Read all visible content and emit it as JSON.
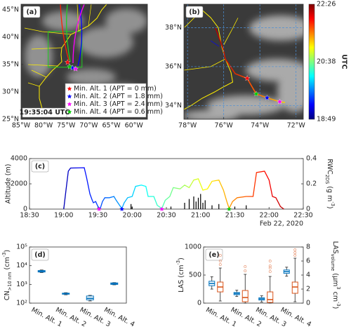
{
  "chart_data": [
    {
      "type": "map",
      "label": "(a)",
      "xlim": [
        -85,
        -57
      ],
      "ylim": [
        25,
        46
      ],
      "xticks": [
        {
          "value": -85,
          "label": "85°W"
        },
        {
          "value": -80,
          "label": "80°W"
        },
        {
          "value": -75,
          "label": "75°W"
        },
        {
          "value": -70,
          "label": "70°W"
        },
        {
          "value": -65,
          "label": "65°W"
        },
        {
          "value": -60,
          "label": "60°W"
        }
      ],
      "yticks": [
        {
          "value": 25,
          "label": "25°N"
        },
        {
          "value": 30,
          "label": "30°N"
        },
        {
          "value": 35,
          "label": "35°N"
        },
        {
          "value": 40,
          "label": "40°N"
        },
        {
          "value": 45,
          "label": "45°N"
        }
      ],
      "grid": false,
      "series": [
        {
          "name": "Min. Alt. 1 (APT = 0 mm)",
          "color": "#ff0000",
          "lon": -74.7,
          "lat": 35.4
        },
        {
          "name": "Min. Alt. 2 (APT = 1.8 mm)",
          "color": "#0000ff",
          "lon": -73.6,
          "lat": 34.4
        },
        {
          "name": "Min. Alt. 3 (APT = 2.4 mm)",
          "color": "#ff00ff",
          "lon": -72.9,
          "lat": 34.2
        },
        {
          "name": "Min. Alt. 4 (APT = 0.6 mm)",
          "color": "#00cc00",
          "lon": -74.2,
          "lat": 34.6
        }
      ],
      "legend": "lower right",
      "annotation": "19:35:04 UTC"
    },
    {
      "type": "map",
      "label": "(b)",
      "xlim": [
        -78.2,
        -71.6
      ],
      "ylim": [
        33.3,
        39.2
      ],
      "xticks": [
        {
          "value": -78,
          "label": "78°W"
        },
        {
          "value": -76,
          "label": "76°W"
        },
        {
          "value": -74,
          "label": "74°W"
        },
        {
          "value": -72,
          "label": "72°W"
        }
      ],
      "yticks": [
        {
          "value": 34,
          "label": "34°N"
        },
        {
          "value": 36,
          "label": "36°N"
        },
        {
          "value": 38,
          "label": "38°N"
        }
      ],
      "grid": true,
      "markers": [
        {
          "color": "#ff0000",
          "lon": -74.7,
          "lat": 35.4
        },
        {
          "color": "#00cc00",
          "lon": -74.2,
          "lat": 34.6
        },
        {
          "color": "#0000ff",
          "lon": -73.6,
          "lat": 34.4
        },
        {
          "color": "#ff00ff",
          "lon": -72.9,
          "lat": 34.2
        }
      ],
      "colorbar": {
        "label": "UTC",
        "ticks": [
          "18:49",
          "20:38",
          "22:26"
        ],
        "colors": [
          "#00007f",
          "#0000ff",
          "#007fff",
          "#00ffff",
          "#7fff7f",
          "#ffff00",
          "#ff7f00",
          "#ff0000",
          "#7f0000"
        ]
      }
    },
    {
      "type": "line",
      "label": "(c)",
      "ylabel": "Altitude (m)",
      "y2label": [
        {
          "text": "RWC"
        },
        {
          "text": "2DS",
          "shift": "sub"
        },
        {
          "text": " (g m"
        },
        {
          "text": "-3",
          "shift": "super"
        },
        {
          "text": ")"
        }
      ],
      "annotation": "Feb 22, 2020",
      "xlim": [
        1110,
        1350
      ],
      "xticks": [
        {
          "value": 1110,
          "label": "18:30"
        },
        {
          "value": 1140,
          "label": "19:00"
        },
        {
          "value": 1170,
          "label": "19:30"
        },
        {
          "value": 1200,
          "label": "20:00"
        },
        {
          "value": 1230,
          "label": "20:30"
        },
        {
          "value": 1260,
          "label": "21:00"
        },
        {
          "value": 1290,
          "label": "21:30"
        },
        {
          "value": 1320,
          "label": "22:00"
        },
        {
          "value": 1350,
          "label": "22:30"
        }
      ],
      "ylim": [
        0,
        4000
      ],
      "yticks": [
        0,
        2000,
        4000
      ],
      "y2lim": [
        0,
        0.4
      ],
      "y2ticks": [
        0,
        0.2,
        0.4
      ],
      "clim": [
        1129,
        1346
      ],
      "colormap": [
        "#00007f",
        "#0000ff",
        "#007fff",
        "#00ffff",
        "#7fff7f",
        "#ffff00",
        "#ff7f00",
        "#ff0000",
        "#7f0000"
      ],
      "series": [
        {
          "type": "line",
          "x": [
            1140,
            1142,
            1144,
            1146,
            1158,
            1160,
            1163,
            1165,
            1166,
            1168,
            1170,
            1172,
            1174,
            1176,
            1180,
            1184,
            1186,
            1189,
            1191,
            1193,
            1196,
            1200,
            1203,
            1208,
            1212,
            1214,
            1219,
            1222,
            1226,
            1229,
            1233,
            1236,
            1242,
            1246,
            1250,
            1254,
            1258,
            1262,
            1266,
            1270,
            1276,
            1280,
            1283,
            1285,
            1288,
            1292,
            1300,
            1306,
            1309,
            1316,
            1320,
            1323,
            1326,
            1330,
            1333
          ],
          "values": [
            0,
            1500,
            3000,
            3250,
            3280,
            2500,
            1200,
            700,
            500,
            600,
            200,
            50,
            600,
            900,
            900,
            1000,
            700,
            300,
            50,
            500,
            900,
            1000,
            1800,
            1900,
            1800,
            1000,
            1000,
            300,
            50,
            700,
            1000,
            1700,
            1600,
            1900,
            1700,
            2300,
            2400,
            1500,
            1600,
            2200,
            2300,
            1500,
            600,
            50,
            600,
            900,
            1000,
            1000,
            2900,
            3000,
            2300,
            1000,
            900,
            200,
            0
          ]
        },
        {
          "type": "bar",
          "axis": "y2",
          "color": "#000000",
          "x": [
            1199,
            1200,
            1234,
            1246,
            1250,
            1254,
            1256,
            1258,
            1260,
            1262,
            1264,
            1270,
            1276,
            1290,
            1300
          ],
          "values": [
            0.04,
            0.02,
            0.02,
            0.05,
            0.08,
            0.1,
            0.06,
            0.09,
            0.12,
            0.05,
            0.07,
            0.03,
            0.04,
            0.02,
            0.03
          ]
        },
        {
          "type": "scatter",
          "x": [
            1171,
            1191,
            1226,
            1285
          ],
          "values": [
            0,
            0,
            0,
            0
          ],
          "colors": [
            "#ff00ff",
            "#0000ff",
            "#ff00ff",
            "#00cc00"
          ]
        }
      ]
    },
    {
      "type": "box",
      "label": "(d)",
      "ylabel": [
        {
          "text": "CN"
        },
        {
          "text": ">10 nm",
          "shift": "sub"
        },
        {
          "text": " (cm"
        },
        {
          "text": "-3",
          "shift": "super"
        },
        {
          "text": ")"
        }
      ],
      "categories": [
        "Min. Alt. 1",
        "Min. Alt. 2",
        "Min. Alt. 3",
        "Min. Alt. 4"
      ],
      "log": true,
      "ylim": [
        100,
        100000
      ],
      "yticks": [
        {
          "value": 100,
          "label": "10²"
        },
        {
          "value": 1000,
          "label": "10³"
        },
        {
          "value": 10000,
          "label": "10⁴"
        },
        {
          "value": 100000,
          "label": "10⁵"
        }
      ],
      "series": [
        {
          "color": "#0072bd",
          "whislo": [
            4300,
            280,
            130,
            950
          ],
          "q1": [
            4600,
            300,
            150,
            1000
          ],
          "median": [
            5000,
            320,
            180,
            1100
          ],
          "q3": [
            5500,
            340,
            240,
            1200
          ],
          "whishi": [
            5900,
            360,
            260,
            1250
          ]
        }
      ]
    },
    {
      "type": "box",
      "label": "(e)",
      "ylabel": [
        {
          "text": "LAS (cm"
        },
        {
          "text": "-3",
          "shift": "super"
        },
        {
          "text": ")"
        }
      ],
      "y2label": [
        {
          "text": "LAS"
        },
        {
          "text": "volume",
          "shift": "sub"
        },
        {
          "text": " (μm"
        },
        {
          "text": "3",
          "shift": "super"
        },
        {
          "text": " cm"
        },
        {
          "text": "-3",
          "shift": "super"
        },
        {
          "text": ")"
        }
      ],
      "categories": [
        "Min. Alt. 1",
        "Min. Alt. 2",
        "Min. Alt. 3",
        "Min. Alt. 4"
      ],
      "ylim": [
        0,
        1000
      ],
      "yticks": [
        0,
        500,
        1000
      ],
      "y2lim": [
        0,
        8
      ],
      "y2ticks": [
        0,
        2,
        4,
        6,
        8
      ],
      "y2color": "#d95319",
      "series": [
        {
          "color": "#0072bd",
          "whislo": [
            250,
            120,
            20,
            480
          ],
          "q1": [
            310,
            150,
            55,
            530
          ],
          "median": [
            350,
            170,
            75,
            560
          ],
          "q3": [
            390,
            190,
            95,
            590
          ],
          "whishi": [
            470,
            230,
            130,
            640
          ]
        },
        {
          "color": "#d95319",
          "axis": "y2",
          "whislo": [
            0.3,
            0,
            0,
            0.2
          ],
          "q1": [
            1.6,
            0.2,
            0.1,
            1.4
          ],
          "median": [
            2.3,
            0.8,
            0.5,
            2.3
          ],
          "q3": [
            3,
            1.8,
            1.6,
            3
          ],
          "whishi": [
            5,
            4.1,
            3.8,
            6.4
          ],
          "fliers": [
            [
              5.5,
              6,
              6.8
            ],
            [
              4.6,
              5.2
            ],
            [
              4.5,
              5,
              5.3,
              6
            ],
            [
              6.8,
              7.2,
              7.6
            ]
          ]
        }
      ]
    }
  ]
}
